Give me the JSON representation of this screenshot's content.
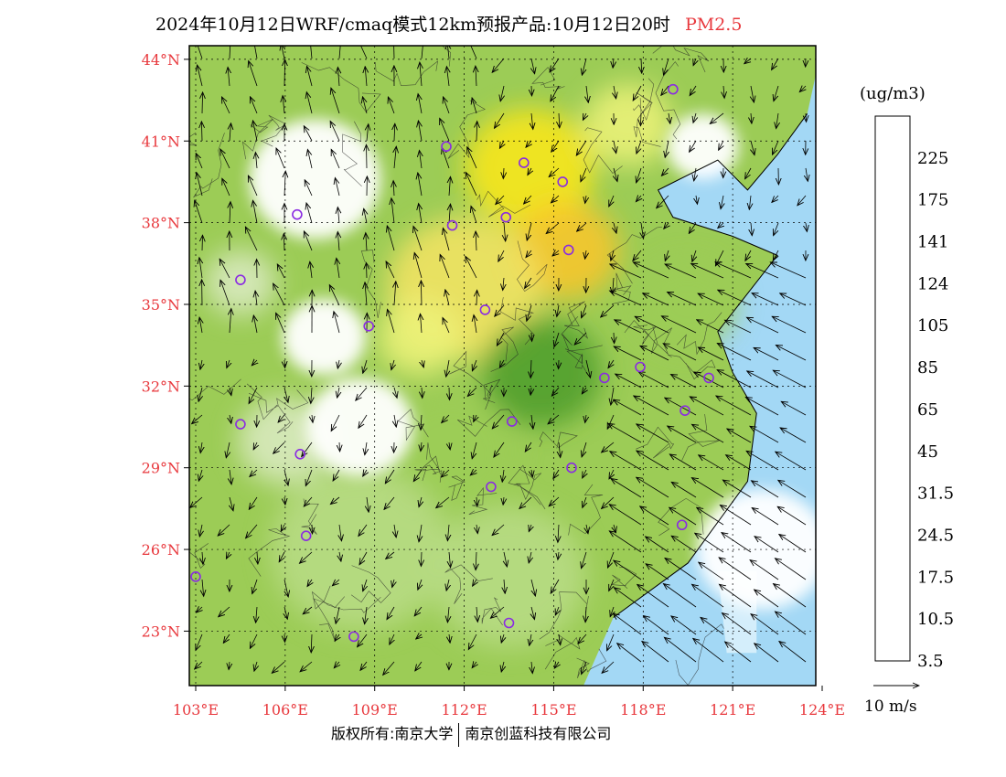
{
  "title": {
    "main": "2024年10月12日WRF/cmaq模式12km预报产品:10月12日20时",
    "pollutant": "PM2.5"
  },
  "footer": {
    "copyright_left": "版权所有:南京大学",
    "copyright_right": "南京创蓝科技有限公司"
  },
  "map": {
    "lon_range": [
      103,
      124
    ],
    "lat_range": [
      21,
      44.5
    ],
    "lat_ticks": [
      {
        "value": 44,
        "label": "44°N"
      },
      {
        "value": 41,
        "label": "41°N"
      },
      {
        "value": 38,
        "label": "38°N"
      },
      {
        "value": 35,
        "label": "35°N"
      },
      {
        "value": 32,
        "label": "32°N"
      },
      {
        "value": 29,
        "label": "29°N"
      },
      {
        "value": 26,
        "label": "26°N"
      },
      {
        "value": 23,
        "label": "23°N"
      }
    ],
    "lon_ticks": [
      {
        "value": 103,
        "label": "103°E"
      },
      {
        "value": 106,
        "label": "106°E"
      },
      {
        "value": 109,
        "label": "109°E"
      },
      {
        "value": 112,
        "label": "112°E"
      },
      {
        "value": 115,
        "label": "115°E"
      },
      {
        "value": 118,
        "label": "118°E"
      },
      {
        "value": 121,
        "label": "121°E"
      },
      {
        "value": 124,
        "label": "124°E"
      }
    ],
    "city_markers": [
      {
        "lon": 119.0,
        "lat": 42.9
      },
      {
        "lon": 111.4,
        "lat": 40.8
      },
      {
        "lon": 114.0,
        "lat": 40.2
      },
      {
        "lon": 115.3,
        "lat": 39.5
      },
      {
        "lon": 106.4,
        "lat": 38.3
      },
      {
        "lon": 111.6,
        "lat": 37.9
      },
      {
        "lon": 113.4,
        "lat": 38.2
      },
      {
        "lon": 115.5,
        "lat": 37.0
      },
      {
        "lon": 104.5,
        "lat": 35.9
      },
      {
        "lon": 112.7,
        "lat": 34.8
      },
      {
        "lon": 108.8,
        "lat": 34.2
      },
      {
        "lon": 116.7,
        "lat": 32.3
      },
      {
        "lon": 117.9,
        "lat": 32.7
      },
      {
        "lon": 120.2,
        "lat": 32.3
      },
      {
        "lon": 119.4,
        "lat": 31.1
      },
      {
        "lon": 104.5,
        "lat": 30.6
      },
      {
        "lon": 113.6,
        "lat": 30.7
      },
      {
        "lon": 106.5,
        "lat": 29.5
      },
      {
        "lon": 115.6,
        "lat": 29.0
      },
      {
        "lon": 112.9,
        "lat": 28.3
      },
      {
        "lon": 106.7,
        "lat": 26.5
      },
      {
        "lon": 119.3,
        "lat": 26.9
      },
      {
        "lon": 103.0,
        "lat": 25.0
      },
      {
        "lon": 113.5,
        "lat": 23.3
      },
      {
        "lon": 108.3,
        "lat": 22.8
      }
    ],
    "pollution_blobs": [
      {
        "lon": 114.2,
        "lat": 40.0,
        "r": 2.2,
        "level": 65
      },
      {
        "lon": 115.4,
        "lat": 37.0,
        "r": 1.8,
        "level": 75
      },
      {
        "lon": 112.0,
        "lat": 35.6,
        "r": 2.6,
        "level": 55
      },
      {
        "lon": 117.5,
        "lat": 41.6,
        "r": 1.5,
        "level": 50
      },
      {
        "lon": 110.5,
        "lat": 33.8,
        "r": 1.4,
        "level": 45
      },
      {
        "lon": 114.6,
        "lat": 32.5,
        "r": 2.0,
        "level": 40
      },
      {
        "lon": 111.5,
        "lat": 29.5,
        "r": 2.2,
        "level": 30
      },
      {
        "lon": 108.5,
        "lat": 26.0,
        "r": 3.0,
        "level": 25
      },
      {
        "lon": 113.5,
        "lat": 25.0,
        "r": 2.6,
        "level": 26
      },
      {
        "lon": 106.0,
        "lat": 30.0,
        "r": 1.6,
        "level": 22
      },
      {
        "lon": 119.5,
        "lat": 35.0,
        "r": 1.6,
        "level": 28
      },
      {
        "lon": 104.5,
        "lat": 35.8,
        "r": 1.2,
        "level": 24
      }
    ],
    "clean_blobs": [
      {
        "lon": 107.0,
        "lat": 39.6,
        "r": 2.2
      },
      {
        "lon": 107.3,
        "lat": 33.8,
        "r": 1.4
      },
      {
        "lon": 108.5,
        "lat": 30.5,
        "r": 1.8
      },
      {
        "lon": 120.0,
        "lat": 40.8,
        "r": 1.2
      },
      {
        "lon": 122.0,
        "lat": 26.0,
        "r": 2.2
      }
    ]
  },
  "colorbar": {
    "unit": "(ug/m3)",
    "levels": [
      {
        "color": "#ffffff",
        "label": "3.5"
      },
      {
        "color": "#d4eefb",
        "label": ""
      },
      {
        "color": "#a3d8f5",
        "label": "10.5"
      },
      {
        "color": "#6bb3e6",
        "label": ""
      },
      {
        "color": "#3f86c5",
        "label": "17.5"
      },
      {
        "color": "#dcebc4",
        "label": ""
      },
      {
        "color": "#b8dc86",
        "label": "24.5"
      },
      {
        "color": "#9ccc56",
        "label": ""
      },
      {
        "color": "#7cbf3f",
        "label": "31.5"
      },
      {
        "color": "#4e9c2a",
        "label": ""
      },
      {
        "color": "#eef37a",
        "label": "45"
      },
      {
        "color": "#f6e463",
        "label": ""
      },
      {
        "color": "#fde81a",
        "label": "65"
      },
      {
        "color": "#fcc62b",
        "label": ""
      },
      {
        "color": "#f9a83a",
        "label": "85"
      },
      {
        "color": "#f6861b",
        "label": ""
      },
      {
        "color": "#ec5b26",
        "label": "105"
      },
      {
        "color": "#f76766",
        "label": ""
      },
      {
        "color": "#ef2b47",
        "label": "124"
      },
      {
        "color": "#e40c28",
        "label": ""
      },
      {
        "color": "#fe0000",
        "label": "141"
      },
      {
        "color": "#c5157a",
        "label": ""
      },
      {
        "color": "#b02c5c",
        "label": "175"
      },
      {
        "color": "#a52fc1",
        "label": ""
      },
      {
        "color": "#8a2bd0",
        "label": "225"
      },
      {
        "color": "#7d1fd9",
        "label": ""
      }
    ]
  },
  "vector_legend": {
    "label": "10 m/s"
  },
  "colors": {
    "marker": "#8a2be2",
    "frame": "#000000",
    "axis_label": "#e8383d"
  }
}
